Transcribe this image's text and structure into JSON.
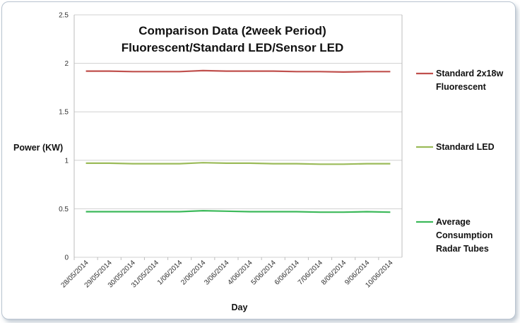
{
  "chart_data": {
    "type": "line",
    "title_lines": [
      "Comparison Data (2week Period)",
      "Fluorescent/Standard LED/Sensor LED"
    ],
    "xlabel": "Day",
    "ylabel": "Power (KW)",
    "ylim": [
      0,
      2.5
    ],
    "yticks": [
      "0",
      "0.5",
      "1",
      "1.5",
      "2",
      "2.5"
    ],
    "grid": true,
    "legend_position": "right",
    "categories": [
      "28/05/2014",
      "29/05/2014",
      "30/05/2014",
      "31/05/2014",
      "1/06/2014",
      "2/06/2014",
      "3/06/2014",
      "4/06/2014",
      "5/06/2014",
      "6/06/2014",
      "7/06/2014",
      "8/06/2014",
      "9/06/2014",
      "10/06/2014"
    ],
    "series": [
      {
        "name_lines": [
          "Standard 2x18w",
          "Fluorescent"
        ],
        "color": "#c0504d",
        "values": [
          1.92,
          1.92,
          1.915,
          1.915,
          1.915,
          1.925,
          1.92,
          1.92,
          1.92,
          1.915,
          1.915,
          1.91,
          1.915,
          1.915
        ]
      },
      {
        "name_lines": [
          "Standard LED"
        ],
        "color": "#9bbb59",
        "values": [
          0.97,
          0.97,
          0.965,
          0.965,
          0.965,
          0.975,
          0.97,
          0.97,
          0.965,
          0.965,
          0.96,
          0.96,
          0.965,
          0.965
        ]
      },
      {
        "name_lines": [
          "Average",
          "Consumption",
          "Radar Tubes"
        ],
        "color": "#3cb95a",
        "values": [
          0.47,
          0.47,
          0.47,
          0.47,
          0.47,
          0.48,
          0.475,
          0.47,
          0.47,
          0.47,
          0.465,
          0.465,
          0.47,
          0.465
        ]
      }
    ]
  }
}
